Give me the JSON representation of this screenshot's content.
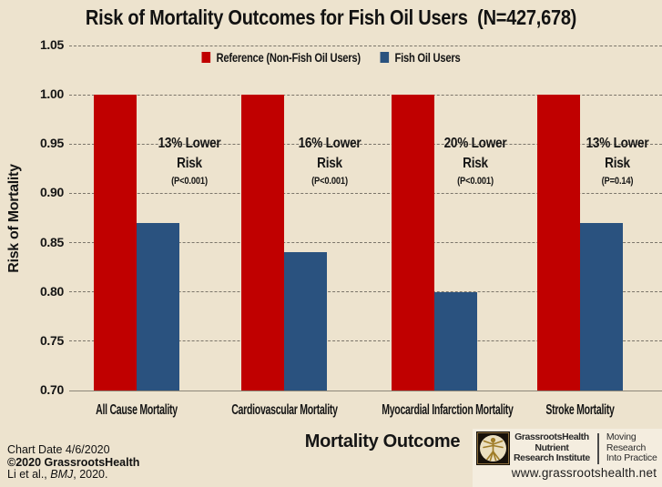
{
  "chart_data": {
    "type": "bar",
    "title": "Risk of Mortality Outcomes for Fish Oil Users  (N=427,678)",
    "xlabel": "Mortality Outcome",
    "ylabel": "Risk of Mortality",
    "ylim": [
      0.7,
      1.05
    ],
    "yticks": [
      "1.05",
      "1.00",
      "0.95",
      "0.90",
      "0.85",
      "0.80",
      "0.75",
      "0.70"
    ],
    "grid": "horizontal dashed",
    "legend_position": "top center",
    "categories": [
      "All Cause Mortality",
      "Cardiovascular Mortality",
      "Myocardial Infarction Mortality",
      "Stroke Mortality"
    ],
    "series": [
      {
        "name": "Reference (Non-Fish Oil Users)",
        "color": "#C00000",
        "values": [
          1.0,
          1.0,
          1.0,
          1.0
        ]
      },
      {
        "name": "Fish Oil Users",
        "color": "#2A527F",
        "values": [
          0.87,
          0.84,
          0.8,
          0.87
        ]
      }
    ],
    "annotations": [
      {
        "line1": "13% Lower",
        "line2": "Risk",
        "line3": "(P<0.001)"
      },
      {
        "line1": "16% Lower",
        "line2": "Risk",
        "line3": "(P<0.001)"
      },
      {
        "line1": "20% Lower",
        "line2": "Risk",
        "line3": "(P<0.001)"
      },
      {
        "line1": "13% Lower",
        "line2": "Risk",
        "line3": "(P=0.14)"
      }
    ]
  },
  "colors": {
    "background": "#EDE3CE",
    "reference_bar": "#C00000",
    "fish_oil_bar": "#2A527F",
    "gridline": "#7B756A",
    "logo_panel_background": "#F4EDDF"
  },
  "footer": {
    "chart_date": "Chart Date 4/6/2020",
    "copyright": "©2020 GrassrootsHealth",
    "citation_pre": "Li et al., ",
    "citation_journal": "BMJ",
    "citation_post": ", 2020."
  },
  "logo": {
    "icon": "vitruvian-man-icon",
    "org": [
      "GrassrootsHealth",
      "Nutrient",
      "Research Institute"
    ],
    "tagline": [
      "Moving",
      "Research",
      "Into Practice"
    ],
    "website": "www.grassrootshealth.net"
  }
}
